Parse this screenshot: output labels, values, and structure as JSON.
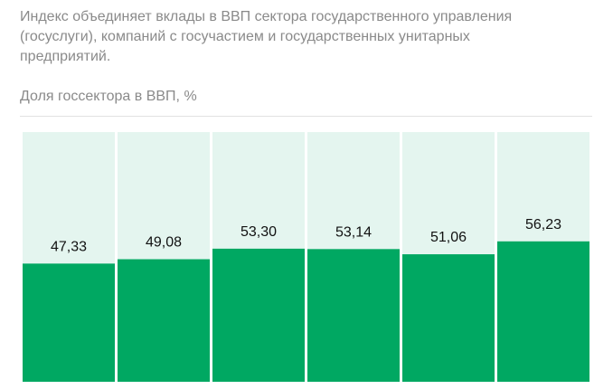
{
  "chart_data": {
    "type": "bar",
    "description": "Индекс объединяет вклады в ВВП сектора государственного управления (госуслуги), компаний с госучастием и государственных унитарных предприятий.",
    "title": "Доля госсектора в ВВП, %",
    "categories": [
      null,
      null,
      null,
      null,
      null,
      null
    ],
    "values": [
      47.33,
      49.08,
      53.3,
      53.14,
      51.06,
      56.23
    ],
    "value_labels": [
      "47,33",
      "49,08",
      "53,30",
      "53,14",
      "51,06",
      "56,23"
    ],
    "color": "#00a862",
    "track_color": "#e4f5ef",
    "ylim": [
      0,
      100
    ]
  }
}
